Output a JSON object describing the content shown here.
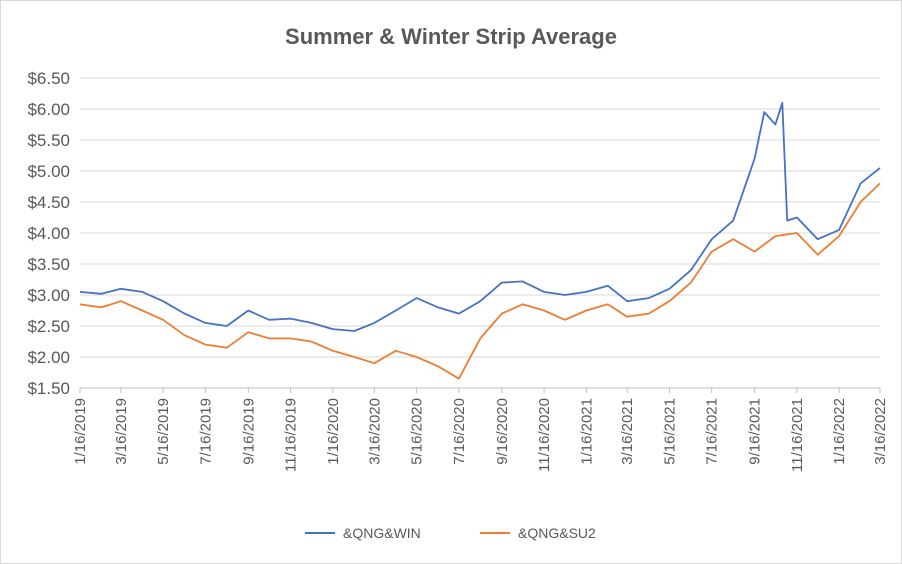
{
  "chart_data": {
    "type": "line",
    "title": "Summer & Winter Strip Average",
    "xlabel": "",
    "ylabel": "",
    "ylim": [
      1.5,
      6.5
    ],
    "y_ticks": [
      {
        "value": 1.5,
        "label": "$1.50"
      },
      {
        "value": 2.0,
        "label": "$2.00"
      },
      {
        "value": 2.5,
        "label": "$2.50"
      },
      {
        "value": 3.0,
        "label": "$3.00"
      },
      {
        "value": 3.5,
        "label": "$3.50"
      },
      {
        "value": 4.0,
        "label": "$4.00"
      },
      {
        "value": 4.5,
        "label": "$4.50"
      },
      {
        "value": 5.0,
        "label": "$5.00"
      },
      {
        "value": 5.5,
        "label": "$5.50"
      },
      {
        "value": 6.0,
        "label": "$6.00"
      },
      {
        "value": 6.5,
        "label": "$6.50"
      }
    ],
    "x_ticks": [
      "1/16/2019",
      "3/16/2019",
      "5/16/2019",
      "7/16/2019",
      "9/16/2019",
      "11/16/2019",
      "1/16/2020",
      "3/16/2020",
      "5/16/2020",
      "7/16/2020",
      "9/16/2020",
      "11/16/2020",
      "1/16/2021",
      "3/16/2021",
      "5/16/2021",
      "7/16/2021",
      "9/16/2021",
      "11/16/2021",
      "1/16/2022",
      "3/16/2022"
    ],
    "grid": "horizontal",
    "legend_position": "bottom",
    "colors": {
      "WIN": "#4472c4",
      "SU2": "#ed7d31"
    },
    "series": [
      {
        "name": "&QNG&WIN",
        "color": "#4472c4",
        "points": [
          [
            "1/16/2019",
            3.05
          ],
          [
            "2/16/2019",
            3.02
          ],
          [
            "3/16/2019",
            3.1
          ],
          [
            "4/16/2019",
            3.05
          ],
          [
            "5/16/2019",
            2.9
          ],
          [
            "6/16/2019",
            2.7
          ],
          [
            "7/16/2019",
            2.55
          ],
          [
            "8/16/2019",
            2.5
          ],
          [
            "9/16/2019",
            2.75
          ],
          [
            "10/16/2019",
            2.6
          ],
          [
            "11/16/2019",
            2.62
          ],
          [
            "12/16/2019",
            2.55
          ],
          [
            "1/16/2020",
            2.45
          ],
          [
            "2/16/2020",
            2.42
          ],
          [
            "3/16/2020",
            2.55
          ],
          [
            "4/16/2020",
            2.75
          ],
          [
            "5/16/2020",
            2.95
          ],
          [
            "6/16/2020",
            2.8
          ],
          [
            "7/16/2020",
            2.7
          ],
          [
            "8/16/2020",
            2.9
          ],
          [
            "9/16/2020",
            3.2
          ],
          [
            "10/16/2020",
            3.22
          ],
          [
            "11/16/2020",
            3.05
          ],
          [
            "12/16/2020",
            3.0
          ],
          [
            "1/16/2021",
            3.05
          ],
          [
            "2/16/2021",
            3.15
          ],
          [
            "3/16/2021",
            2.9
          ],
          [
            "4/16/2021",
            2.95
          ],
          [
            "5/16/2021",
            3.1
          ],
          [
            "6/16/2021",
            3.4
          ],
          [
            "7/16/2021",
            3.9
          ],
          [
            "8/16/2021",
            4.2
          ],
          [
            "9/16/2021",
            5.2
          ],
          [
            "9/30/2021",
            5.95
          ],
          [
            "10/16/2021",
            5.75
          ],
          [
            "10/26/2021",
            6.1
          ],
          [
            "11/2/2021",
            4.2
          ],
          [
            "11/16/2021",
            4.25
          ],
          [
            "12/16/2021",
            3.9
          ],
          [
            "1/16/2022",
            4.05
          ],
          [
            "2/16/2022",
            4.8
          ],
          [
            "3/16/2022",
            5.05
          ]
        ]
      },
      {
        "name": "&QNG&SU2",
        "color": "#ed7d31",
        "points": [
          [
            "1/16/2019",
            2.85
          ],
          [
            "2/16/2019",
            2.8
          ],
          [
            "3/16/2019",
            2.9
          ],
          [
            "4/16/2019",
            2.75
          ],
          [
            "5/16/2019",
            2.6
          ],
          [
            "6/16/2019",
            2.35
          ],
          [
            "7/16/2019",
            2.2
          ],
          [
            "8/16/2019",
            2.15
          ],
          [
            "9/16/2019",
            2.4
          ],
          [
            "10/16/2019",
            2.3
          ],
          [
            "11/16/2019",
            2.3
          ],
          [
            "12/16/2019",
            2.25
          ],
          [
            "1/16/2020",
            2.1
          ],
          [
            "2/16/2020",
            2.0
          ],
          [
            "3/16/2020",
            1.9
          ],
          [
            "4/16/2020",
            2.1
          ],
          [
            "5/16/2020",
            2.0
          ],
          [
            "6/16/2020",
            1.85
          ],
          [
            "7/16/2020",
            1.65
          ],
          [
            "8/16/2020",
            2.3
          ],
          [
            "9/16/2020",
            2.7
          ],
          [
            "10/16/2020",
            2.85
          ],
          [
            "11/16/2020",
            2.75
          ],
          [
            "12/16/2020",
            2.6
          ],
          [
            "1/16/2021",
            2.75
          ],
          [
            "2/16/2021",
            2.85
          ],
          [
            "3/16/2021",
            2.65
          ],
          [
            "4/16/2021",
            2.7
          ],
          [
            "5/16/2021",
            2.9
          ],
          [
            "6/16/2021",
            3.2
          ],
          [
            "7/16/2021",
            3.7
          ],
          [
            "8/16/2021",
            3.9
          ],
          [
            "9/16/2021",
            3.7
          ],
          [
            "10/16/2021",
            3.95
          ],
          [
            "11/16/2021",
            4.0
          ],
          [
            "12/16/2021",
            3.65
          ],
          [
            "1/16/2022",
            3.95
          ],
          [
            "2/16/2022",
            4.5
          ],
          [
            "3/16/2022",
            4.8
          ]
        ]
      }
    ]
  }
}
